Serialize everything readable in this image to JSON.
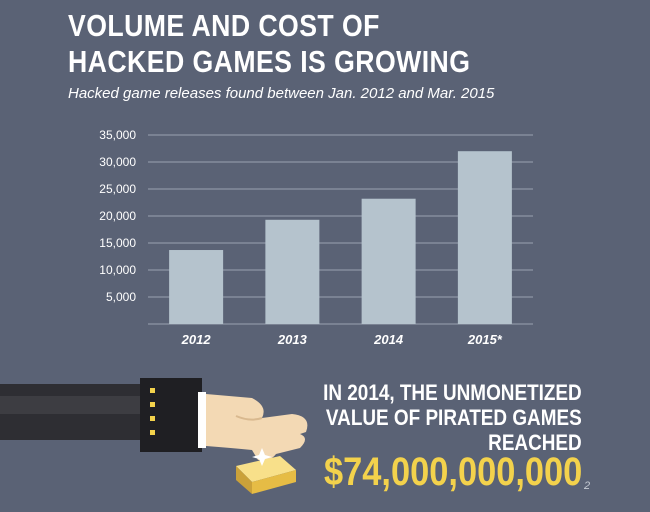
{
  "header": {
    "title_line1": "VOLUME AND COST OF",
    "title_line2": "HACKED GAMES IS GROWING",
    "subtitle": "Hacked game releases found between Jan. 2012 and Mar. 2015"
  },
  "chart_data": {
    "type": "bar",
    "categories": [
      "2012",
      "2013",
      "2014",
      "2015*"
    ],
    "values": [
      13700,
      19300,
      23200,
      32000
    ],
    "title": "",
    "xlabel": "",
    "ylabel": "",
    "ylim": [
      0,
      35000
    ],
    "yticks": [
      "5,000",
      "10,000",
      "15,000",
      "20,000",
      "25,000",
      "30,000",
      "35,000"
    ],
    "grid": true,
    "bar_color": "#b5c3cd",
    "grid_color": "#9aa2b1"
  },
  "callout": {
    "line1": "IN 2014, THE UNMONETIZED",
    "line2": "VALUE OF PIRATED GAMES",
    "line3": "REACHED",
    "amount": "$74,000,000,000",
    "footnote": "2",
    "amount_color": "#f3d24c"
  },
  "illustration": {
    "sleeve_icon": "suit-sleeve-icon",
    "hand_icon": "hand-icon",
    "gold_icon": "gold-bar-icon"
  }
}
